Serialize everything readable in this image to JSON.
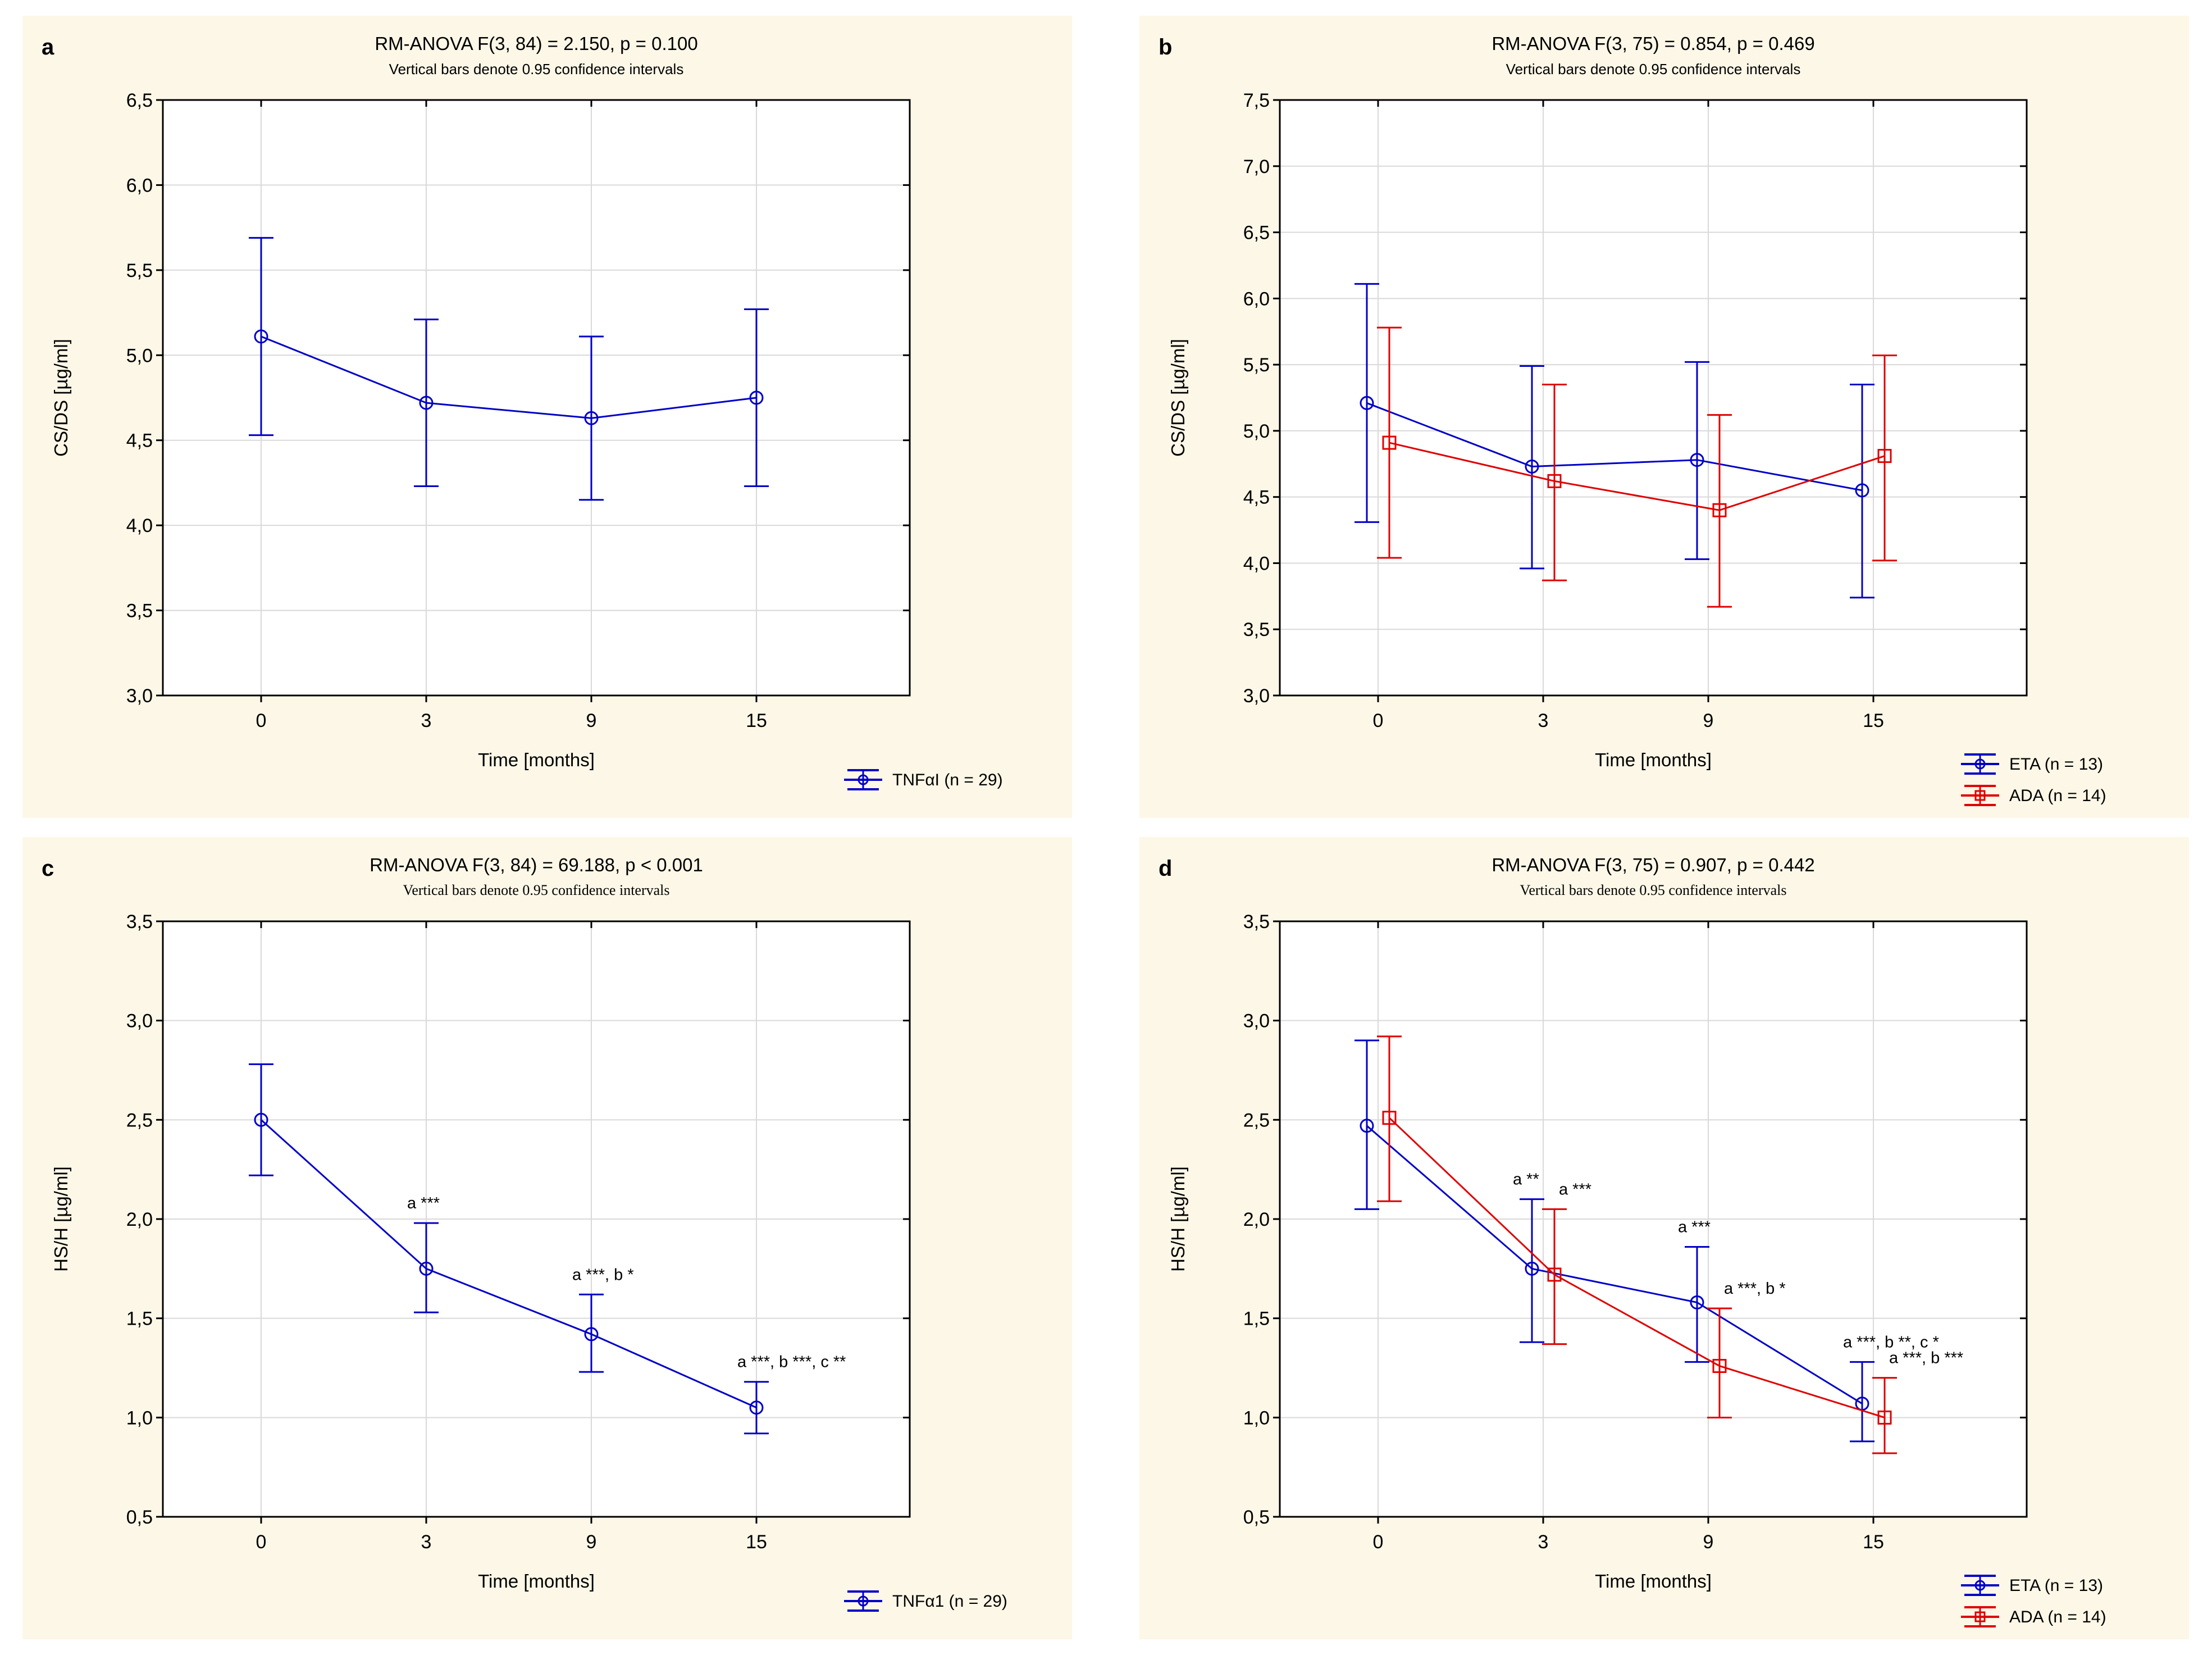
{
  "figure": {
    "colors": {
      "series_blue": "#0000C8",
      "series_red": "#E00000",
      "grid": "#D9D9D9",
      "frame": "#000000",
      "panel_background": "#FDF7E7",
      "plot_background": "#FFFFFF",
      "text": "#000000"
    }
  },
  "chart_data": [
    {
      "id": "a",
      "type": "line",
      "title": "RM-ANOVA F(3, 84) = 2.150, p = 0.100",
      "subtitle": "Vertical bars denote 0.95 confidence intervals",
      "xlabel": "Time [months]",
      "ylabel": "CS/DS [µg/ml]",
      "x_tick_labels": [
        "0",
        "3",
        "9",
        "15"
      ],
      "ylim": [
        3.0,
        6.5
      ],
      "ystep": 0.5,
      "y_tick_labels": [
        "3,0",
        "3,5",
        "4,0",
        "4,5",
        "5,0",
        "5,5",
        "6,0",
        "6,5"
      ],
      "grid": "on",
      "legend_position": "bottom-right",
      "series": [
        {
          "name": "TNFαI (n = 29)",
          "color": "#0000C8",
          "marker": "circle",
          "annotation_color": "#000000",
          "x": [
            0,
            3,
            9,
            15
          ],
          "y": [
            5.11,
            4.72,
            4.63,
            4.75
          ],
          "ci_low": [
            4.53,
            4.23,
            4.15,
            4.23
          ],
          "ci_high": [
            5.69,
            5.21,
            5.11,
            5.27
          ],
          "annotations": [
            "",
            "",
            "",
            ""
          ]
        }
      ]
    },
    {
      "id": "b",
      "type": "line",
      "title": "RM-ANOVA F(3, 75) = 0.854, p = 0.469",
      "subtitle": "Vertical bars denote 0.95 confidence intervals",
      "xlabel": "Time [months]",
      "ylabel": "CS/DS [µg/ml]",
      "x_tick_labels": [
        "0",
        "3",
        "9",
        "15"
      ],
      "ylim": [
        3.0,
        7.5
      ],
      "ystep": 0.5,
      "y_tick_labels": [
        "3,0",
        "3,5",
        "4,0",
        "4,5",
        "5,0",
        "5,5",
        "6,0",
        "6,5",
        "7,0",
        "7,5"
      ],
      "grid": "on",
      "legend_position": "bottom-right",
      "series": [
        {
          "name": "ETA (n = 13)",
          "color": "#0000C8",
          "marker": "circle",
          "annotation_color": "#0000C8",
          "x": [
            0,
            3,
            9,
            15
          ],
          "y": [
            5.21,
            4.73,
            4.78,
            4.55
          ],
          "ci_low": [
            4.31,
            3.96,
            4.03,
            3.74
          ],
          "ci_high": [
            6.11,
            5.49,
            5.52,
            5.35
          ],
          "annotations": [
            "",
            "",
            "",
            ""
          ]
        },
        {
          "name": "ADA (n = 14)",
          "color": "#E00000",
          "marker": "square",
          "annotation_color": "#E00000",
          "x": [
            0,
            3,
            9,
            15
          ],
          "y": [
            4.91,
            4.62,
            4.4,
            4.81
          ],
          "ci_low": [
            4.04,
            3.87,
            3.67,
            4.02
          ],
          "ci_high": [
            5.78,
            5.35,
            5.12,
            5.57
          ],
          "annotations": [
            "",
            "",
            "",
            ""
          ]
        }
      ]
    },
    {
      "id": "c",
      "type": "line",
      "title": "RM-ANOVA F(3, 84) = 69.188, p < 0.001",
      "subtitle": "Vertical bars denote 0.95 confidence intervals",
      "xlabel": "Time [months]",
      "ylabel": "HS/H [µg/ml]",
      "x_tick_labels": [
        "0",
        "3",
        "9",
        "15"
      ],
      "ylim": [
        0.5,
        3.5
      ],
      "ystep": 0.5,
      "y_tick_labels": [
        "0,5",
        "1,0",
        "1,5",
        "2,0",
        "2,5",
        "3,0",
        "3,5"
      ],
      "grid": "on",
      "legend_position": "bottom-right",
      "series": [
        {
          "name": "TNFα1 (n = 29)",
          "color": "#0000C8",
          "marker": "circle",
          "annotation_color": "#000000",
          "x": [
            0,
            3,
            9,
            15
          ],
          "y": [
            2.5,
            1.75,
            1.42,
            1.05
          ],
          "ci_low": [
            2.22,
            1.53,
            1.23,
            0.92
          ],
          "ci_high": [
            2.78,
            1.98,
            1.62,
            1.18
          ],
          "annotations": [
            "",
            "a ***",
            "a ***, b *",
            "a ***, b ***, c **"
          ]
        }
      ]
    },
    {
      "id": "d",
      "type": "line",
      "title": "RM-ANOVA F(3, 75) = 0.907, p = 0.442",
      "subtitle": "Vertical bars denote 0.95 confidence intervals",
      "xlabel": "Time [months]",
      "ylabel": "HS/H [µg/ml]",
      "x_tick_labels": [
        "0",
        "3",
        "9",
        "15"
      ],
      "ylim": [
        0.5,
        3.5
      ],
      "ystep": 0.5,
      "y_tick_labels": [
        "0,5",
        "1,0",
        "1,5",
        "2,0",
        "2,5",
        "3,0",
        "3,5"
      ],
      "grid": "on",
      "legend_position": "bottom-right",
      "series": [
        {
          "name": "ETA (n = 13)",
          "color": "#0000C8",
          "marker": "circle",
          "annotation_color": "#0000C8",
          "x": [
            0,
            3,
            9,
            15
          ],
          "y": [
            2.47,
            1.75,
            1.58,
            1.07
          ],
          "ci_low": [
            2.05,
            1.38,
            1.28,
            0.88
          ],
          "ci_high": [
            2.9,
            2.1,
            1.86,
            1.28
          ],
          "annotations": [
            "",
            "a **",
            "a ***",
            "a ***, b **, c *"
          ]
        },
        {
          "name": "ADA (n = 14)",
          "color": "#E00000",
          "marker": "square",
          "annotation_color": "#E00000",
          "x": [
            0,
            3,
            9,
            15
          ],
          "y": [
            2.51,
            1.72,
            1.26,
            1.0
          ],
          "ci_low": [
            2.09,
            1.37,
            1.0,
            0.82
          ],
          "ci_high": [
            2.92,
            2.05,
            1.55,
            1.2
          ],
          "annotations": [
            "",
            "a ***",
            "a ***, b *",
            "a ***, b ***"
          ]
        }
      ]
    }
  ]
}
